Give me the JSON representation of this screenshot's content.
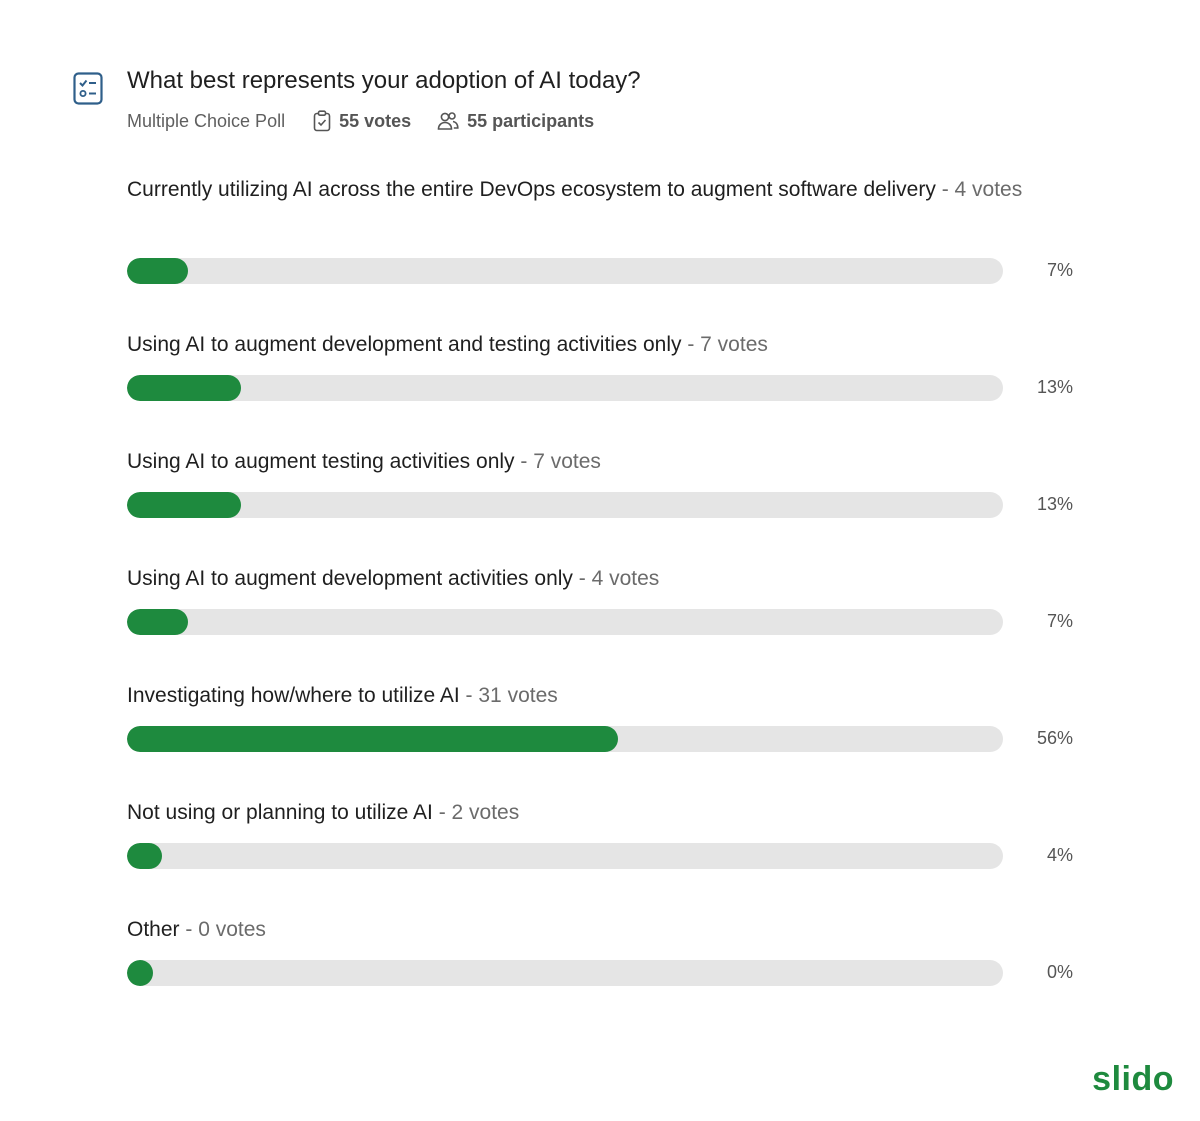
{
  "poll": {
    "title": "What best represents your adoption of AI today?",
    "type_label": "Multiple Choice Poll",
    "votes_label": "55 votes",
    "participants_label": "55 participants",
    "icon": "poll-checklist-icon"
  },
  "colors": {
    "bar_fill": "#1e8a3e",
    "bar_track": "#e5e5e5",
    "brand": "#1e8a3e"
  },
  "chart_data": {
    "type": "bar",
    "orientation": "horizontal",
    "title": "What best represents your adoption of AI today?",
    "total_votes": 55,
    "categories": [
      "Currently utilizing AI across the entire DevOps ecosystem to augment software delivery",
      "Using AI to augment development and testing activities only",
      "Using AI to augment testing activities only",
      "Using AI to augment development activities only",
      "Investigating how/where to utilize AI",
      "Not using or planning to utilize AI",
      "Other"
    ],
    "votes": [
      4,
      7,
      7,
      4,
      31,
      2,
      0
    ],
    "vote_labels": [
      "- 4 votes",
      "- 7 votes",
      "- 7 votes",
      "- 4 votes",
      "- 31 votes",
      "- 2 votes",
      "- 0 votes"
    ],
    "percent_labels": [
      "7%",
      "13%",
      "13%",
      "7%",
      "56%",
      "4%",
      "0%"
    ],
    "values": [
      7,
      13,
      13,
      7,
      56,
      4,
      0
    ],
    "xlim": [
      0,
      100
    ]
  },
  "brand": {
    "logo_text": "slido"
  }
}
